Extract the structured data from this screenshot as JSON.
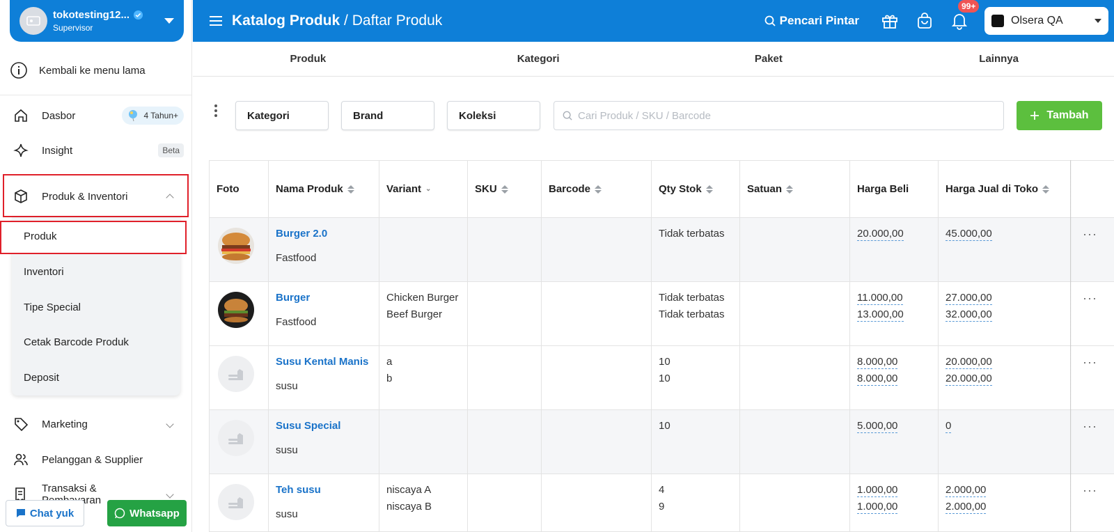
{
  "account": {
    "name": "tokotesting12...",
    "role": "Supervisor"
  },
  "sidebar": {
    "old_menu": "Kembali ke menu lama",
    "dashboard": "Dasbor",
    "years_badge": "4 Tahun+",
    "insight": "Insight",
    "beta": "Beta",
    "products_inventory": "Produk & Inventori",
    "sub": [
      "Produk",
      "Inventori",
      "Tipe Special",
      "Cetak Barcode Produk",
      "Deposit"
    ],
    "marketing": "Marketing",
    "customers": "Pelanggan & Supplier",
    "transactions": "Transaksi & Pembayaran"
  },
  "help": {
    "chat": "Chat yuk",
    "whatsapp": "Whatsapp"
  },
  "topbar": {
    "crumb_main": "Katalog Produk",
    "crumb_sub": "Daftar Produk",
    "smart_search": "Pencari Pintar",
    "notif_count": "99+",
    "store": "Olsera QA"
  },
  "tabs": [
    "Produk",
    "Kategori",
    "Paket",
    "Lainnya"
  ],
  "filters": {
    "kategori": "Kategori",
    "brand": "Brand",
    "koleksi": "Koleksi",
    "search_placeholder": "Cari Produk / SKU / Barcode",
    "add": "Tambah"
  },
  "table": {
    "headers": [
      "Foto",
      "Nama Produk",
      "Variant",
      "SKU",
      "Barcode",
      "Qty Stok",
      "Satuan",
      "Harga Beli",
      "Harga Jual di Toko"
    ],
    "rows": [
      {
        "name": "Burger 2.0",
        "category": "Fastfood",
        "variants": [
          "",
          ""
        ],
        "qty": [
          "Tidak terbatas",
          ""
        ],
        "buy": [
          "20.000,00",
          ""
        ],
        "sell": [
          "45.000,00",
          ""
        ]
      },
      {
        "name": "Burger",
        "category": "Fastfood",
        "variants": [
          "Chicken Burger",
          "Beef Burger"
        ],
        "qty": [
          "Tidak terbatas",
          "Tidak terbatas"
        ],
        "buy": [
          "11.000,00",
          "13.000,00"
        ],
        "sell": [
          "27.000,00",
          "32.000,00"
        ]
      },
      {
        "name": "Susu Kental Manis",
        "category": "susu",
        "variants": [
          "a",
          "b"
        ],
        "qty": [
          "10",
          "10"
        ],
        "buy": [
          "8.000,00",
          "8.000,00"
        ],
        "sell": [
          "20.000,00",
          "20.000,00"
        ]
      },
      {
        "name": "Susu Special",
        "category": "susu",
        "variants": [
          "",
          ""
        ],
        "qty": [
          "10",
          ""
        ],
        "buy": [
          "5.000,00",
          ""
        ],
        "sell": [
          "0",
          ""
        ]
      },
      {
        "name": "Teh susu",
        "category": "susu",
        "variants": [
          "niscaya A",
          "niscaya B"
        ],
        "qty": [
          "4",
          "9"
        ],
        "buy": [
          "1.000,00",
          "1.000,00"
        ],
        "sell": [
          "2.000,00",
          "2.000,00"
        ]
      }
    ]
  }
}
